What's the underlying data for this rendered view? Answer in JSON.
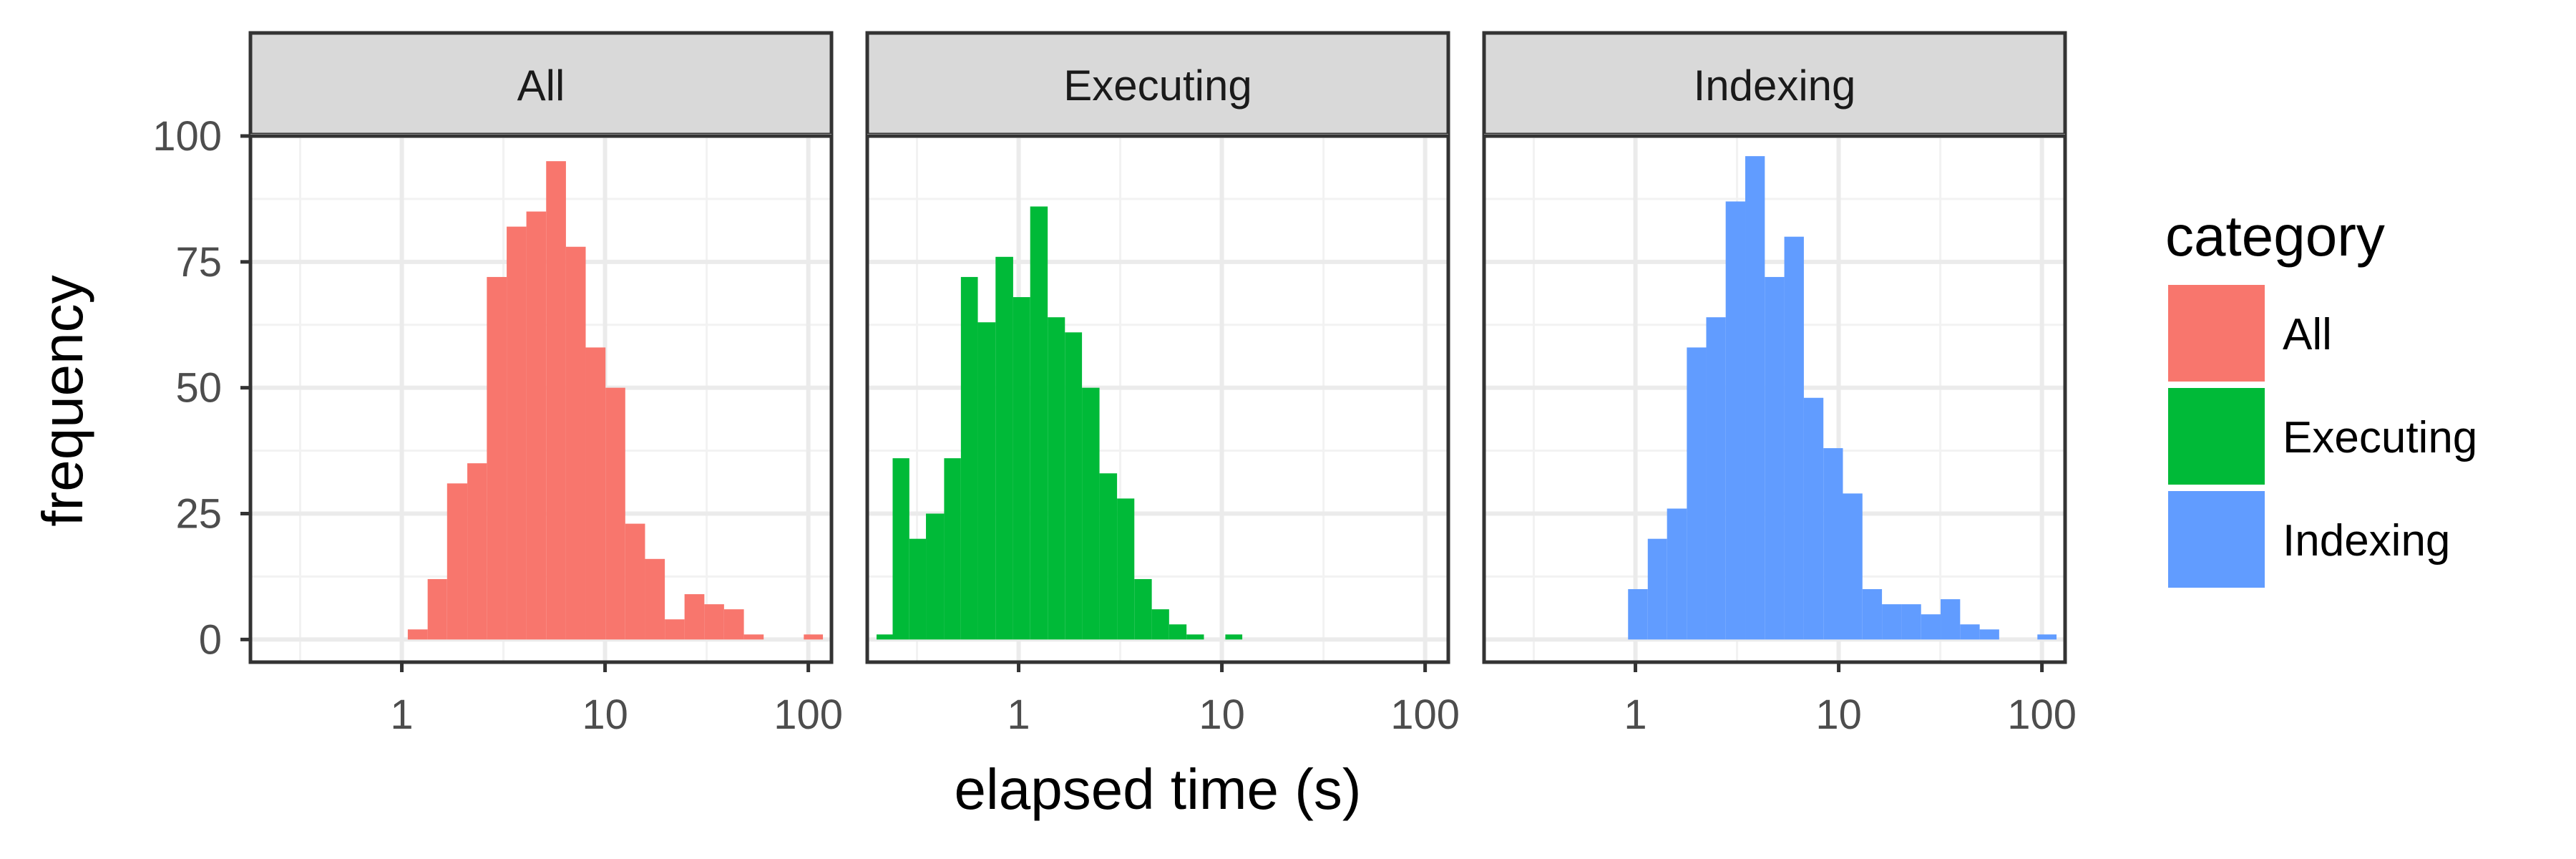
{
  "chart_data": {
    "type": "bar",
    "subtype": "faceted-histogram",
    "xlabel": "elapsed time (s)",
    "ylabel": "frequency",
    "x_scale": "log10",
    "xlim": [
      0.18,
      130
    ],
    "x_ticks": [
      1,
      10,
      100
    ],
    "x_tick_labels": [
      "1",
      "10",
      "100"
    ],
    "ylim": [
      -4.5,
      100
    ],
    "y_ticks": [
      0,
      25,
      50,
      75,
      100
    ],
    "y_tick_labels": [
      "0",
      "25",
      "50",
      "75",
      "100"
    ],
    "grid": true,
    "legend": {
      "title": "category",
      "position": "right",
      "entries": [
        {
          "label": "All",
          "color": "#F8766D"
        },
        {
          "label": "Executing",
          "color": "#00BA38"
        },
        {
          "label": "Indexing",
          "color": "#619CFF"
        }
      ]
    },
    "panels": [
      {
        "strip": "All",
        "color": "#F8766D",
        "bins": [
          {
            "x0": 1.07,
            "x1": 1.34,
            "y": 2
          },
          {
            "x0": 1.34,
            "x1": 1.67,
            "y": 12
          },
          {
            "x0": 1.67,
            "x1": 2.1,
            "y": 31
          },
          {
            "x0": 2.1,
            "x1": 2.62,
            "y": 35
          },
          {
            "x0": 2.62,
            "x1": 3.28,
            "y": 72
          },
          {
            "x0": 3.28,
            "x1": 4.1,
            "y": 82
          },
          {
            "x0": 4.1,
            "x1": 5.13,
            "y": 85
          },
          {
            "x0": 5.13,
            "x1": 6.42,
            "y": 95
          },
          {
            "x0": 6.42,
            "x1": 8.03,
            "y": 78
          },
          {
            "x0": 8.03,
            "x1": 10.05,
            "y": 58
          },
          {
            "x0": 10.05,
            "x1": 12.57,
            "y": 50
          },
          {
            "x0": 12.57,
            "x1": 15.73,
            "y": 23
          },
          {
            "x0": 15.73,
            "x1": 19.68,
            "y": 16
          },
          {
            "x0": 19.68,
            "x1": 24.6,
            "y": 4
          },
          {
            "x0": 24.6,
            "x1": 30.8,
            "y": 9
          },
          {
            "x0": 30.8,
            "x1": 38.5,
            "y": 7
          },
          {
            "x0": 38.5,
            "x1": 48.2,
            "y": 6
          },
          {
            "x0": 48.2,
            "x1": 60.3,
            "y": 1
          },
          {
            "x0": 95,
            "x1": 118,
            "y": 1
          }
        ]
      },
      {
        "strip": "Executing",
        "color": "#00BA38",
        "bins": [
          {
            "x0": 0.2,
            "x1": 0.24,
            "y": 1
          },
          {
            "x0": 0.24,
            "x1": 0.29,
            "y": 36
          },
          {
            "x0": 0.29,
            "x1": 0.35,
            "y": 20
          },
          {
            "x0": 0.35,
            "x1": 0.43,
            "y": 25
          },
          {
            "x0": 0.43,
            "x1": 0.52,
            "y": 36
          },
          {
            "x0": 0.52,
            "x1": 0.63,
            "y": 72
          },
          {
            "x0": 0.63,
            "x1": 0.77,
            "y": 63
          },
          {
            "x0": 0.77,
            "x1": 0.94,
            "y": 76
          },
          {
            "x0": 0.94,
            "x1": 1.14,
            "y": 68
          },
          {
            "x0": 1.14,
            "x1": 1.39,
            "y": 86
          },
          {
            "x0": 1.39,
            "x1": 1.69,
            "y": 64
          },
          {
            "x0": 1.69,
            "x1": 2.05,
            "y": 61
          },
          {
            "x0": 2.05,
            "x1": 2.5,
            "y": 50
          },
          {
            "x0": 2.5,
            "x1": 3.05,
            "y": 33
          },
          {
            "x0": 3.05,
            "x1": 3.71,
            "y": 28
          },
          {
            "x0": 3.71,
            "x1": 4.52,
            "y": 12
          },
          {
            "x0": 4.52,
            "x1": 5.5,
            "y": 6
          },
          {
            "x0": 5.5,
            "x1": 6.7,
            "y": 3
          },
          {
            "x0": 6.7,
            "x1": 8.16,
            "y": 1
          },
          {
            "x0": 10.4,
            "x1": 12.6,
            "y": 1
          }
        ]
      },
      {
        "strip": "Indexing",
        "color": "#619CFF",
        "bins": [
          {
            "x0": 0.92,
            "x1": 1.15,
            "y": 10
          },
          {
            "x0": 1.15,
            "x1": 1.43,
            "y": 20
          },
          {
            "x0": 1.43,
            "x1": 1.79,
            "y": 26
          },
          {
            "x0": 1.79,
            "x1": 2.23,
            "y": 58
          },
          {
            "x0": 2.23,
            "x1": 2.78,
            "y": 64
          },
          {
            "x0": 2.78,
            "x1": 3.47,
            "y": 87
          },
          {
            "x0": 3.47,
            "x1": 4.33,
            "y": 96
          },
          {
            "x0": 4.33,
            "x1": 5.4,
            "y": 72
          },
          {
            "x0": 5.4,
            "x1": 6.74,
            "y": 80
          },
          {
            "x0": 6.74,
            "x1": 8.41,
            "y": 48
          },
          {
            "x0": 8.41,
            "x1": 10.49,
            "y": 38
          },
          {
            "x0": 10.49,
            "x1": 13.09,
            "y": 29
          },
          {
            "x0": 13.09,
            "x1": 16.33,
            "y": 10
          },
          {
            "x0": 16.33,
            "x1": 20.38,
            "y": 7
          },
          {
            "x0": 20.38,
            "x1": 25.43,
            "y": 7
          },
          {
            "x0": 25.43,
            "x1": 31.73,
            "y": 5
          },
          {
            "x0": 31.73,
            "x1": 39.59,
            "y": 8
          },
          {
            "x0": 39.59,
            "x1": 49.4,
            "y": 3
          },
          {
            "x0": 49.4,
            "x1": 61.6,
            "y": 2
          },
          {
            "x0": 95,
            "x1": 118,
            "y": 1
          }
        ]
      }
    ]
  }
}
